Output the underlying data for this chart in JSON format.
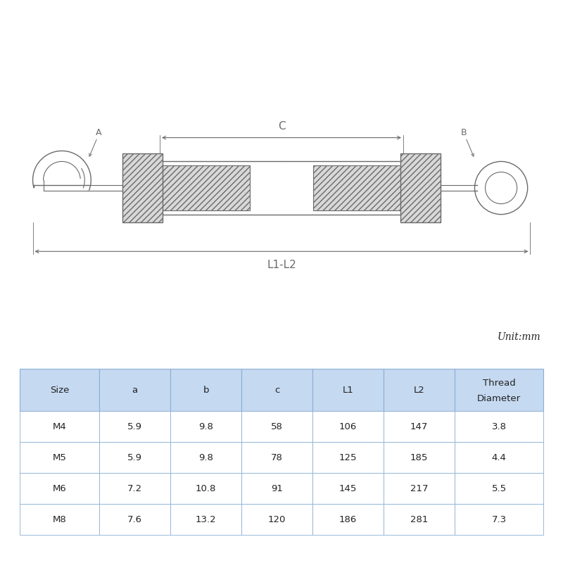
{
  "bg_color": "#ffffff",
  "drawing_color": "#6a6a6a",
  "drawing_color_light": "#999999",
  "hatch_color": "#888888",
  "hatch_fill": "#d8d8d8",
  "table_header_bg": "#c5d9f1",
  "table_border_color": "#8aafd4",
  "table_text_color": "#222222",
  "unit_text": "Unit:mm",
  "headers": [
    "Size",
    "a",
    "b",
    "c",
    "L1",
    "L2",
    "Thread\nDiameter"
  ],
  "rows": [
    [
      "M4",
      "5.9",
      "9.8",
      "58",
      "106",
      "147",
      "3.8"
    ],
    [
      "M5",
      "5.9",
      "9.8",
      "78",
      "125",
      "185",
      "4.4"
    ],
    [
      "M6",
      "7.2",
      "10.8",
      "91",
      "145",
      "217",
      "5.5"
    ],
    [
      "M8",
      "7.6",
      "13.2",
      "120",
      "186",
      "281",
      "7.3"
    ]
  ]
}
